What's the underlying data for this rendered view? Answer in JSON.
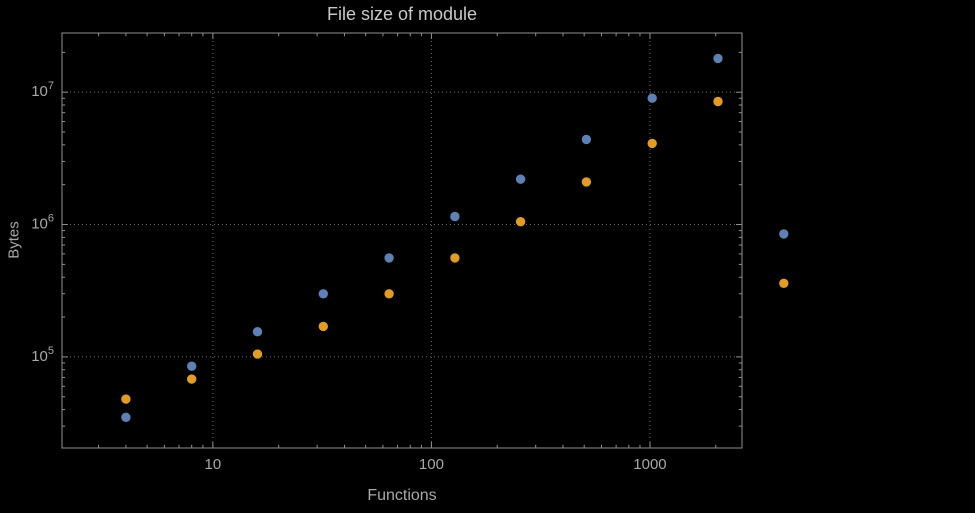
{
  "chart_data": {
    "type": "scatter",
    "title": "File size of module",
    "xlabel": "Functions",
    "ylabel": "Bytes",
    "x_scale": "log",
    "y_scale": "log",
    "x_range": [
      2.04,
      2637
    ],
    "y_range": [
      20500,
      28000000
    ],
    "grid": true,
    "legend": "none",
    "x_ticks": [
      {
        "value": 10,
        "label": "10"
      },
      {
        "value": 100,
        "label": "100"
      },
      {
        "value": 1000,
        "label": "1000"
      }
    ],
    "y_ticks": [
      {
        "value": 100000,
        "base": "10",
        "exp": "5"
      },
      {
        "value": 1000000,
        "base": "10",
        "exp": "6"
      },
      {
        "value": 10000000,
        "base": "10",
        "exp": "7"
      }
    ],
    "x": [
      4,
      8,
      16,
      32,
      64,
      128,
      256,
      512,
      1024,
      2048,
      4096
    ],
    "series": [
      {
        "name": "blue",
        "color": "#5E81B5",
        "values": [
          35000,
          85000,
          155000,
          300000,
          560000,
          1150000,
          2200000,
          4400000,
          9000000,
          18000000,
          850000
        ]
      },
      {
        "name": "orange",
        "color": "#E09C24",
        "values": [
          48000,
          68000,
          105000,
          170000,
          300000,
          560000,
          1050000,
          2100000,
          4100000,
          8500000,
          360000
        ]
      }
    ],
    "colors": {
      "background": "#000000",
      "frame": "#909090",
      "grid": "#6a6a6a",
      "title": "#c8c8c8",
      "axis_labels": "#a8a8a8",
      "tick_labels": "#a8a8a8",
      "point_blue": "#5E81B5",
      "point_orange": "#E09C24"
    }
  }
}
